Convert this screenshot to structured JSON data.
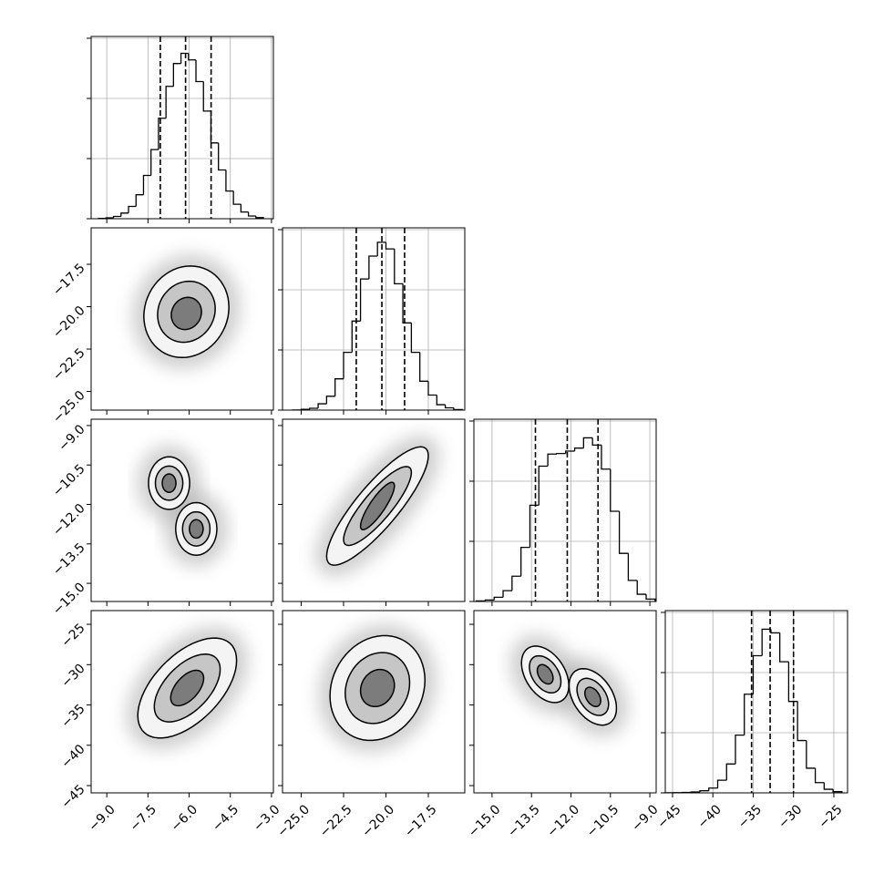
{
  "chart_data": {
    "type": "corner",
    "grid": true,
    "hist_color": "#000000",
    "level_colors": [
      "#f4f4f4",
      "#c6c6c6",
      "#7c7c7c"
    ],
    "hist_ylim": [
      0,
      3030
    ],
    "hist_yticks": [
      0,
      1000,
      2000,
      3000
    ],
    "params": [
      {
        "lim": [
          -9.57,
          -2.93
        ],
        "ticks": [
          {
            "value": -9.0,
            "label": "−9.0"
          },
          {
            "value": -7.5,
            "label": "−7.5"
          },
          {
            "value": -6.0,
            "label": "−6.0"
          },
          {
            "value": -4.5,
            "label": "−4.5"
          },
          {
            "value": -3.0,
            "label": "−3.0"
          }
        ],
        "quantiles": [
          -7.05,
          -6.13,
          -5.2
        ],
        "bins": [
          -9.3,
          -9.027,
          -8.754,
          -8.481,
          -8.208,
          -7.935,
          -7.662,
          -7.389,
          -7.116,
          -6.843,
          -6.57,
          -6.297,
          -6.024,
          -5.751,
          -5.478,
          -5.205,
          -4.932,
          -4.659,
          -4.386,
          -4.113,
          -3.84,
          -3.567,
          -3.294
        ],
        "counts": [
          5,
          14,
          38,
          94,
          204,
          399,
          720,
          1150,
          1670,
          2200,
          2580,
          2750,
          2640,
          2280,
          1790,
          1260,
          810,
          460,
          240,
          112,
          46,
          18
        ]
      },
      {
        "lim": [
          -26.1,
          -15.35
        ],
        "ticks": [
          {
            "value": -25.0,
            "label": "−25.0"
          },
          {
            "value": -22.5,
            "label": "−22.5"
          },
          {
            "value": -20.0,
            "label": "−20.0"
          },
          {
            "value": -17.5,
            "label": "−17.5"
          }
        ],
        "quantiles": [
          -21.75,
          -20.24,
          -18.9
        ],
        "bins": [
          -25.5,
          -25.0,
          -24.5,
          -24.0,
          -23.5,
          -23.0,
          -22.5,
          -22.0,
          -21.5,
          -21.0,
          -20.5,
          -20.0,
          -19.5,
          -19.0,
          -18.5,
          -18.0,
          -17.5,
          -17.0,
          -16.5,
          -16.0,
          -15.5
        ],
        "counts": [
          2,
          12,
          30,
          105,
          230,
          520,
          960,
          1480,
          2180,
          2560,
          2790,
          2680,
          2100,
          1450,
          960,
          480,
          250,
          90,
          38,
          9
        ]
      },
      {
        "lim": [
          -15.69,
          -8.76
        ],
        "ticks": [
          {
            "value": -15.0,
            "label": "−15.0"
          },
          {
            "value": -13.5,
            "label": "−13.5"
          },
          {
            "value": -12.0,
            "label": "−12.0"
          },
          {
            "value": -10.5,
            "label": "−10.5"
          },
          {
            "value": -9.0,
            "label": "−9.0"
          }
        ],
        "quantiles": [
          -13.35,
          -12.14,
          -10.97
        ],
        "bins": [
          -15.6,
          -15.26,
          -14.92,
          -14.58,
          -14.24,
          -13.9,
          -13.56,
          -13.22,
          -12.88,
          -12.54,
          -12.2,
          -11.86,
          -11.52,
          -11.18,
          -10.84,
          -10.5,
          -10.16,
          -9.82,
          -9.48,
          -9.14,
          -8.8
        ],
        "counts": [
          10,
          25,
          70,
          180,
          420,
          900,
          1600,
          2250,
          2450,
          2460,
          2500,
          2550,
          2720,
          2600,
          2200,
          1500,
          800,
          350,
          120,
          40
        ]
      },
      {
        "lim": [
          -45.9,
          -23.3
        ],
        "ticks": [
          {
            "value": -45,
            "label": "−45"
          },
          {
            "value": -40,
            "label": "−40"
          },
          {
            "value": -35,
            "label": "−35"
          },
          {
            "value": -30,
            "label": "−30"
          },
          {
            "value": -25,
            "label": "−25"
          }
        ],
        "quantiles": [
          -35.2,
          -32.9,
          -30.0
        ],
        "bins": [
          -46.0,
          -44.9,
          -43.8,
          -42.7,
          -41.6,
          -40.5,
          -39.4,
          -38.3,
          -37.2,
          -36.1,
          -35.0,
          -33.9,
          -32.8,
          -31.7,
          -30.6,
          -29.5,
          -28.4,
          -27.3,
          -26.2,
          -25.1,
          -24.0
        ],
        "counts": [
          2,
          3,
          8,
          15,
          35,
          80,
          210,
          480,
          960,
          1640,
          2280,
          2720,
          2660,
          2180,
          1520,
          870,
          410,
          170,
          60,
          20
        ]
      }
    ],
    "pairs": [
      {
        "x": 0,
        "y": 1,
        "levels": [
          [
            {
              "x": -6.1,
              "y": -20.3,
              "rx": 1.55,
              "ry": 2.7,
              "rho": 0.1
            }
          ],
          [
            {
              "x": -6.1,
              "y": -20.3,
              "rx": 1.05,
              "ry": 1.8,
              "rho": 0.1
            }
          ],
          [
            {
              "x": -6.1,
              "y": -20.4,
              "rx": 0.55,
              "ry": 0.95,
              "rho": 0.1
            }
          ]
        ]
      },
      {
        "x": 0,
        "y": 2,
        "levels": [
          [
            {
              "x": -6.73,
              "y": -11.19,
              "rx": 0.75,
              "ry": 1.0,
              "rho": 0.0
            },
            {
              "x": -5.74,
              "y": -12.93,
              "rx": 0.75,
              "ry": 1.0,
              "rho": 0.0
            }
          ],
          [
            {
              "x": -6.73,
              "y": -11.19,
              "rx": 0.5,
              "ry": 0.65,
              "rho": 0.0
            },
            {
              "x": -5.74,
              "y": -12.93,
              "rx": 0.5,
              "ry": 0.65,
              "rho": 0.0
            }
          ],
          [
            {
              "x": -6.73,
              "y": -11.19,
              "rx": 0.25,
              "ry": 0.35,
              "rho": 0.0
            },
            {
              "x": -5.74,
              "y": -12.93,
              "rx": 0.25,
              "ry": 0.35,
              "rho": 0.0
            }
          ]
        ]
      },
      {
        "x": 1,
        "y": 2,
        "levels": [
          [
            {
              "x": -20.5,
              "y": -12.06,
              "rx": 3.0,
              "ry": 2.25,
              "rho": 0.85
            }
          ],
          [
            {
              "x": -20.5,
              "y": -12.06,
              "rx": 2.0,
              "ry": 1.5,
              "rho": 0.85
            }
          ],
          [
            {
              "x": -20.5,
              "y": -12.06,
              "rx": 1.0,
              "ry": 0.9,
              "rho": 0.85
            }
          ]
        ]
      },
      {
        "x": 0,
        "y": 3,
        "levels": [
          [
            {
              "x": -6.07,
              "y": -32.9,
              "rx": 1.8,
              "ry": 6.2,
              "rho": 0.55
            }
          ],
          [
            {
              "x": -6.07,
              "y": -32.9,
              "rx": 1.2,
              "ry": 4.2,
              "rho": 0.55
            }
          ],
          [
            {
              "x": -6.07,
              "y": -32.9,
              "rx": 0.6,
              "ry": 2.2,
              "rho": 0.55
            }
          ]
        ]
      },
      {
        "x": 1,
        "y": 3,
        "levels": [
          [
            {
              "x": -20.5,
              "y": -32.9,
              "rx": 2.8,
              "ry": 6.5,
              "rho": 0.15
            }
          ],
          [
            {
              "x": -20.5,
              "y": -32.9,
              "rx": 1.9,
              "ry": 4.4,
              "rho": 0.15
            }
          ],
          [
            {
              "x": -20.5,
              "y": -32.9,
              "rx": 1.0,
              "ry": 2.3,
              "rho": 0.15
            }
          ]
        ]
      },
      {
        "x": 2,
        "y": 3,
        "levels": [
          [
            {
              "x": -12.98,
              "y": -31.2,
              "rx": 0.9,
              "ry": 3.5,
              "rho": -0.4
            },
            {
              "x": -11.17,
              "y": -34.0,
              "rx": 0.9,
              "ry": 3.5,
              "rho": -0.4
            }
          ],
          [
            {
              "x": -12.98,
              "y": -31.2,
              "rx": 0.6,
              "ry": 2.3,
              "rho": -0.4
            },
            {
              "x": -11.17,
              "y": -34.0,
              "rx": 0.6,
              "ry": 2.3,
              "rho": -0.4
            }
          ],
          [
            {
              "x": -12.98,
              "y": -31.2,
              "rx": 0.3,
              "ry": 1.2,
              "rho": -0.4
            },
            {
              "x": -11.17,
              "y": -34.0,
              "rx": 0.3,
              "ry": 1.2,
              "rho": -0.4
            }
          ]
        ]
      }
    ]
  }
}
